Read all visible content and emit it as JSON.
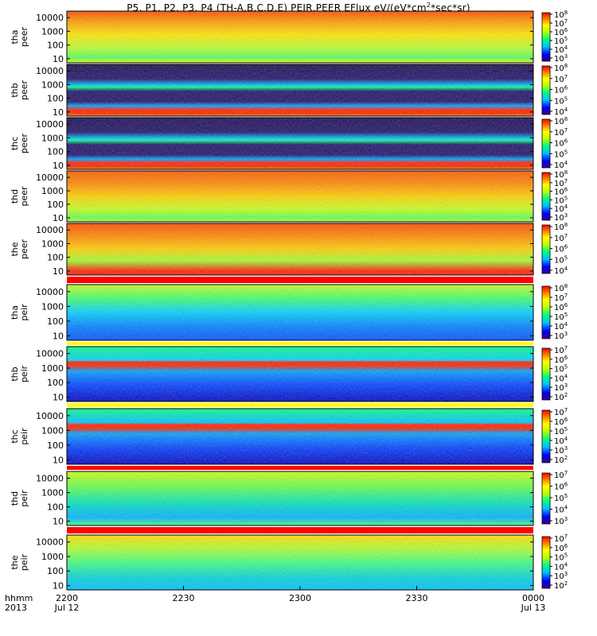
{
  "title": {
    "prefix": "P5, P1, P2, P3, P4 (TH-A,B,C,D,E) PEIR,PEER EFlux eV/(eV*cm",
    "superscript": "2",
    "suffix": "*sec*sr)"
  },
  "time_axis": {
    "row_labels": [
      "hhmm",
      "2013"
    ],
    "ticks": [
      {
        "time": "2200",
        "date": "Jul 12"
      },
      {
        "time": "2230",
        "date": ""
      },
      {
        "time": "2300",
        "date": ""
      },
      {
        "time": "2330",
        "date": ""
      },
      {
        "time": "0000",
        "date": "Jul 13"
      }
    ]
  },
  "chart_data": {
    "type": "heatmap",
    "title": "P5, P1, P2, P3, P4 (TH-A,B,C,D,E) PEIR,PEER EFlux eV/(eV*cm^2*sec*sr)",
    "x_range_minutes": [
      0,
      120
    ],
    "x_ticks_minutes": [
      0,
      30,
      60,
      90,
      120
    ],
    "y_scale": "log",
    "y_ticks": [
      "10",
      "100",
      "1000",
      "10000"
    ],
    "colormap": "rainbow (purple-blue-cyan-green-yellow-red)",
    "panels": [
      {
        "probe": "tha",
        "species": "peer",
        "colorbar": [
          "10^3",
          "10^4",
          "10^5",
          "10^6",
          "10^7",
          "10^8"
        ],
        "dominant": "red-orange at high energy, green at low energy"
      },
      {
        "probe": "thb",
        "species": "peer",
        "colorbar": [
          "10^4",
          "10^5",
          "10^6",
          "10^7",
          "10^8"
        ],
        "dominant": "purple background, narrow bands near 15 eV and 500 eV"
      },
      {
        "probe": "thc",
        "species": "peer",
        "colorbar": [
          "10^4",
          "10^5",
          "10^6",
          "10^7",
          "10^8"
        ],
        "dominant": "purple background, narrow bands near 15 eV and 500 eV"
      },
      {
        "probe": "thd",
        "species": "peer",
        "colorbar": [
          "10^3",
          "10^4",
          "10^5",
          "10^6",
          "10^7",
          "10^8"
        ],
        "dominant": "red-orange at high energy, green at low energy"
      },
      {
        "probe": "the",
        "species": "peer",
        "colorbar": [
          "10^4",
          "10^5",
          "10^6",
          "10^7",
          "10^8"
        ],
        "dominant": "red-orange at high energy, green block then red floor"
      },
      {
        "probe": "tha",
        "species": "peir",
        "colorbar": [
          "10^3",
          "10^4",
          "10^5",
          "10^6",
          "10^7",
          "10^8"
        ],
        "dominant": "green at top, blue noise below"
      },
      {
        "probe": "thb",
        "species": "peir",
        "colorbar": [
          "10^2",
          "10^3",
          "10^4",
          "10^5",
          "10^6",
          "10^7"
        ],
        "dominant": "red band near 1000 eV, blue noise below"
      },
      {
        "probe": "thc",
        "species": "peir",
        "colorbar": [
          "10^2",
          "10^3",
          "10^4",
          "10^5",
          "10^6",
          "10^7"
        ],
        "dominant": "red band near 1000 eV, blue noise below"
      },
      {
        "probe": "thd",
        "species": "peir",
        "colorbar": [
          "10^3",
          "10^4",
          "10^5",
          "10^6",
          "10^7"
        ],
        "dominant": "green-yellow at top, cyan below"
      },
      {
        "probe": "the",
        "species": "peir",
        "colorbar": [
          "10^2",
          "10^3",
          "10^4",
          "10^5",
          "10^6",
          "10^7"
        ],
        "dominant": "yellow at top, green-cyan below"
      }
    ]
  }
}
